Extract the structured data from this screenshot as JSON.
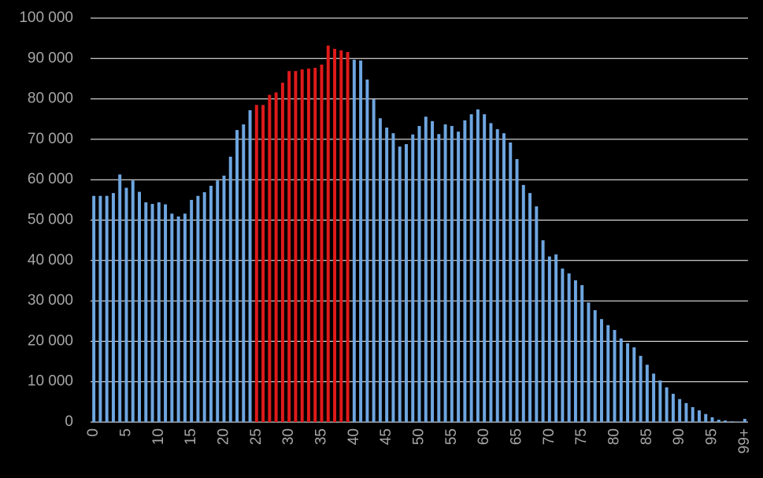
{
  "chart_data": {
    "type": "bar",
    "categories": [
      "0",
      null,
      null,
      null,
      null,
      "5",
      null,
      null,
      null,
      null,
      "10",
      null,
      null,
      null,
      null,
      "15",
      null,
      null,
      null,
      null,
      "20",
      null,
      null,
      null,
      null,
      "25",
      null,
      null,
      null,
      null,
      "30",
      null,
      null,
      null,
      null,
      "35",
      null,
      null,
      null,
      null,
      "40",
      null,
      null,
      null,
      null,
      "45",
      null,
      null,
      null,
      null,
      "50",
      null,
      null,
      null,
      null,
      "55",
      null,
      null,
      null,
      null,
      "60",
      null,
      null,
      null,
      null,
      "65",
      null,
      null,
      null,
      null,
      "70",
      null,
      null,
      null,
      null,
      "75",
      null,
      null,
      null,
      null,
      "80",
      null,
      null,
      null,
      null,
      "85",
      null,
      null,
      null,
      null,
      "90",
      null,
      null,
      null,
      null,
      "95",
      null,
      null,
      null,
      null,
      "99+"
    ],
    "values": [
      56000,
      56000,
      56000,
      56700,
      61300,
      58000,
      59800,
      57000,
      54400,
      54000,
      54400,
      53900,
      51600,
      50900,
      51600,
      55000,
      56000,
      56900,
      58500,
      59800,
      61000,
      65700,
      72300,
      73700,
      77200,
      78500,
      78500,
      81000,
      81600,
      84000,
      86900,
      86900,
      87300,
      87500,
      87700,
      88500,
      93200,
      92400,
      92000,
      91600,
      89700,
      89500,
      84800,
      79900,
      75200,
      72900,
      71500,
      68200,
      68800,
      71200,
      73300,
      75600,
      74500,
      71300,
      73700,
      73300,
      71900,
      74700,
      76200,
      77400,
      76200,
      74000,
      72500,
      71500,
      69200,
      65100,
      58700,
      56700,
      53400,
      45000,
      41000,
      41500,
      38000,
      36800,
      35100,
      33900,
      29600,
      27700,
      25500,
      24000,
      22800,
      20700,
      19500,
      18500,
      16400,
      14200,
      12000,
      10300,
      8600,
      7000,
      5700,
      4700,
      3700,
      2900,
      2000,
      1200,
      600,
      400,
      200,
      150,
      800
    ],
    "colors": [
      "#6ea6e0",
      "#6ea6e0",
      "#6ea6e0",
      "#6ea6e0",
      "#6ea6e0",
      "#6ea6e0",
      "#6ea6e0",
      "#6ea6e0",
      "#6ea6e0",
      "#6ea6e0",
      "#6ea6e0",
      "#6ea6e0",
      "#6ea6e0",
      "#6ea6e0",
      "#6ea6e0",
      "#6ea6e0",
      "#6ea6e0",
      "#6ea6e0",
      "#6ea6e0",
      "#6ea6e0",
      "#6ea6e0",
      "#6ea6e0",
      "#6ea6e0",
      "#6ea6e0",
      "#6ea6e0",
      "#e01a1a",
      "#e01a1a",
      "#e01a1a",
      "#e01a1a",
      "#e01a1a",
      "#e01a1a",
      "#e01a1a",
      "#e01a1a",
      "#e01a1a",
      "#e01a1a",
      "#e01a1a",
      "#e01a1a",
      "#e01a1a",
      "#e01a1a",
      "#e01a1a",
      "#6ea6e0",
      "#6ea6e0",
      "#6ea6e0",
      "#6ea6e0",
      "#6ea6e0",
      "#6ea6e0",
      "#6ea6e0",
      "#6ea6e0",
      "#6ea6e0",
      "#6ea6e0",
      "#6ea6e0",
      "#6ea6e0",
      "#6ea6e0",
      "#6ea6e0",
      "#6ea6e0",
      "#6ea6e0",
      "#6ea6e0",
      "#6ea6e0",
      "#6ea6e0",
      "#6ea6e0",
      "#6ea6e0",
      "#6ea6e0",
      "#6ea6e0",
      "#6ea6e0",
      "#6ea6e0",
      "#6ea6e0",
      "#6ea6e0",
      "#6ea6e0",
      "#6ea6e0",
      "#6ea6e0",
      "#6ea6e0",
      "#6ea6e0",
      "#6ea6e0",
      "#6ea6e0",
      "#6ea6e0",
      "#6ea6e0",
      "#6ea6e0",
      "#6ea6e0",
      "#6ea6e0",
      "#6ea6e0",
      "#6ea6e0",
      "#6ea6e0",
      "#6ea6e0",
      "#6ea6e0",
      "#6ea6e0",
      "#6ea6e0",
      "#6ea6e0",
      "#6ea6e0",
      "#6ea6e0",
      "#6ea6e0",
      "#6ea6e0",
      "#6ea6e0",
      "#6ea6e0",
      "#6ea6e0",
      "#6ea6e0",
      "#6ea6e0",
      "#6ea6e0",
      "#6ea6e0",
      "#6ea6e0",
      "#6ea6e0",
      "#6ea6e0"
    ],
    "ylim": [
      0,
      100000
    ],
    "yticks": [
      0,
      {
        "value": 10000,
        "label": "10 000"
      },
      {
        "value": 20000,
        "label": "20 000"
      },
      {
        "value": 30000,
        "label": "30 000"
      },
      {
        "value": 40000,
        "label": "40 000"
      },
      {
        "value": 50000,
        "label": "50 000"
      },
      {
        "value": 60000,
        "label": "60 000"
      },
      {
        "value": 70000,
        "label": "70 000"
      },
      {
        "value": 80000,
        "label": "80 000"
      },
      {
        "value": 90000,
        "label": "90 000"
      },
      {
        "value": 100000,
        "label": "100 000"
      }
    ],
    "grid": true
  }
}
